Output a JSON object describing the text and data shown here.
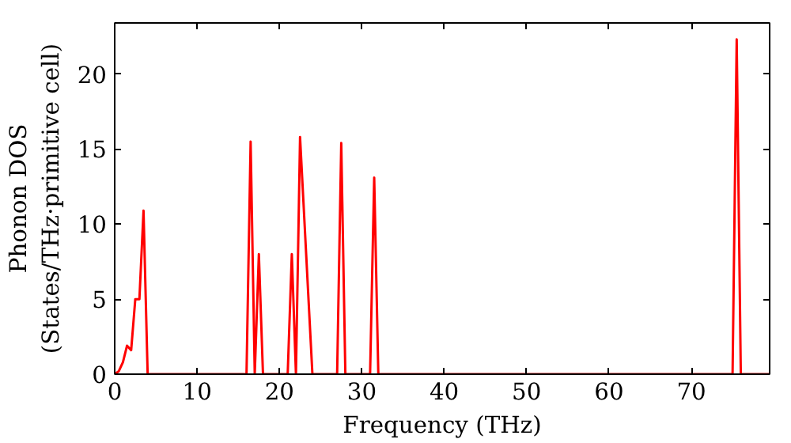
{
  "chart_data": {
    "type": "line",
    "xlabel": "Frequency (THz)",
    "ylabel": "Phonon DOS\n(States/THz·primitive cell)",
    "x": [
      0,
      0.5,
      1,
      1.5,
      2,
      2.5,
      3,
      3.5,
      4,
      16,
      16.5,
      17,
      17.5,
      18,
      21,
      21.5,
      22,
      22.5,
      24,
      27,
      27.5,
      28,
      31,
      31.5,
      32,
      75,
      75.5,
      76,
      79.5
    ],
    "series": [
      {
        "color": "#ff0000",
        "values": [
          0,
          0.2,
          0.8,
          1.9,
          1.6,
          5,
          5,
          10.9,
          0,
          0,
          15.5,
          0,
          8,
          0,
          0,
          8,
          0,
          15.8,
          0,
          0,
          15.4,
          0,
          0,
          13.1,
          0,
          0,
          22.3,
          0,
          0
        ]
      }
    ],
    "xlim": [
      0,
      79.5
    ],
    "ylim": [
      0,
      23.4
    ],
    "xticks": [
      0,
      10,
      20,
      30,
      40,
      50,
      60,
      70
    ],
    "yticks": [
      0,
      5,
      10,
      15,
      20
    ],
    "grid": false
  }
}
